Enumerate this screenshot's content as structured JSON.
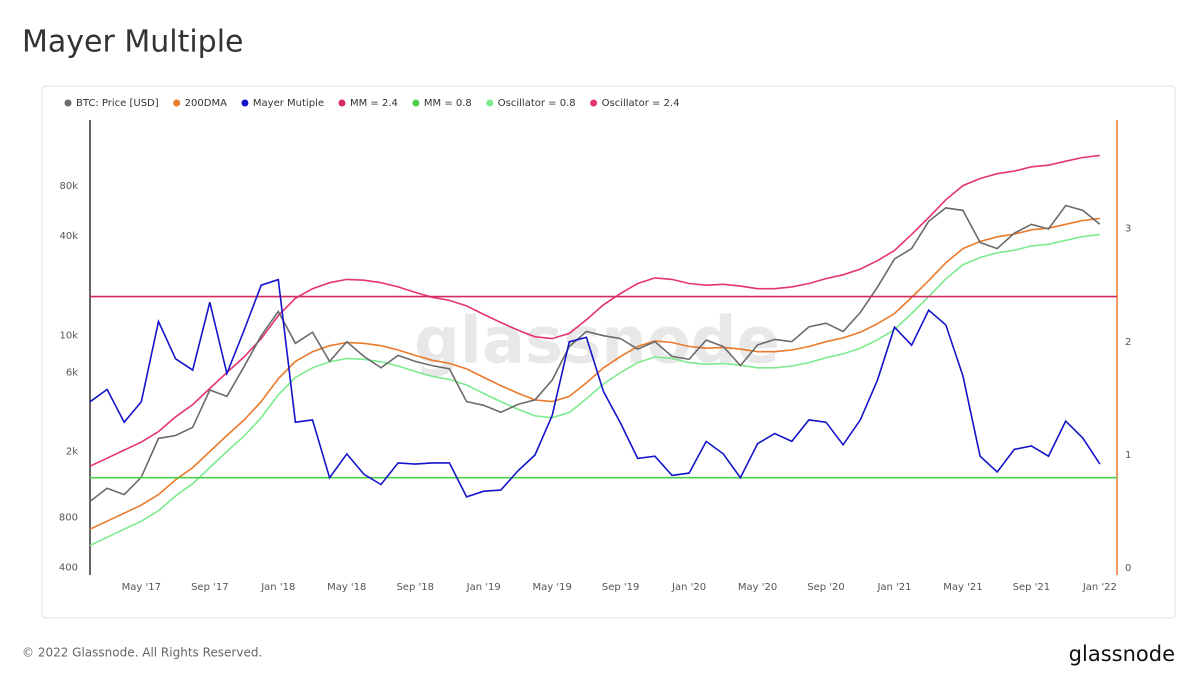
{
  "chart_data": {
    "type": "line",
    "title": "Mayer Multiple",
    "x": [
      "2017-02",
      "2017-03",
      "2017-04",
      "2017-05",
      "2017-06",
      "2017-07",
      "2017-08",
      "2017-09",
      "2017-10",
      "2017-11",
      "2017-12",
      "2018-01",
      "2018-02",
      "2018-03",
      "2018-04",
      "2018-05",
      "2018-06",
      "2018-07",
      "2018-08",
      "2018-09",
      "2018-10",
      "2018-11",
      "2018-12",
      "2019-01",
      "2019-02",
      "2019-03",
      "2019-04",
      "2019-05",
      "2019-06",
      "2019-07",
      "2019-08",
      "2019-09",
      "2019-10",
      "2019-11",
      "2019-12",
      "2020-01",
      "2020-02",
      "2020-03",
      "2020-04",
      "2020-05",
      "2020-06",
      "2020-07",
      "2020-08",
      "2020-09",
      "2020-10",
      "2020-11",
      "2020-12",
      "2021-01",
      "2021-02",
      "2021-03",
      "2021-04",
      "2021-05",
      "2021-06",
      "2021-07",
      "2021-08",
      "2021-09",
      "2021-10",
      "2021-11",
      "2021-12",
      "2022-01"
    ],
    "xlim": [
      "2017-02",
      "2022-02"
    ],
    "xticks": [
      {
        "value": "2017-05",
        "label": "May '17"
      },
      {
        "value": "2017-09",
        "label": "Sep '17"
      },
      {
        "value": "2018-01",
        "label": "Jan '18"
      },
      {
        "value": "2018-05",
        "label": "May '18"
      },
      {
        "value": "2018-09",
        "label": "Sep '18"
      },
      {
        "value": "2019-01",
        "label": "Jan '19"
      },
      {
        "value": "2019-05",
        "label": "May '19"
      },
      {
        "value": "2019-09",
        "label": "Sep '19"
      },
      {
        "value": "2020-01",
        "label": "Jan '20"
      },
      {
        "value": "2020-05",
        "label": "May '20"
      },
      {
        "value": "2020-09",
        "label": "Sep '20"
      },
      {
        "value": "2021-01",
        "label": "Jan '21"
      },
      {
        "value": "2021-05",
        "label": "May '21"
      },
      {
        "value": "2021-09",
        "label": "Sep '21"
      },
      {
        "value": "2022-01",
        "label": "Jan '22"
      }
    ],
    "ylim": [
      360,
      200000
    ],
    "yscale": "log",
    "yticks": [
      400,
      800,
      {
        "value": 2000,
        "label": "2k"
      },
      {
        "value": 6000,
        "label": "6k"
      },
      {
        "value": 10000,
        "label": "10k"
      },
      {
        "value": 40000,
        "label": "40k"
      },
      {
        "value": 80000,
        "label": "80k"
      }
    ],
    "y2lim": [
      -0.06,
      3.96
    ],
    "y2ticks": [
      0,
      1,
      2,
      3
    ],
    "grid": false,
    "series": [
      {
        "name": "BTC: Price [USD]",
        "color": "#6b6b6b",
        "values": [
          1000,
          1200,
          1100,
          1400,
          2400,
          2500,
          2800,
          4700,
          4300,
          6500,
          10000,
          14000,
          9000,
          10500,
          7000,
          9200,
          7500,
          6400,
          7600,
          7000,
          6600,
          6300,
          4000,
          3800,
          3450,
          3850,
          4100,
          5400,
          8600,
          10600,
          10000,
          9600,
          8300,
          9200,
          7500,
          7200,
          9400,
          8600,
          6600,
          8800,
          9500,
          9200,
          11300,
          11900,
          10600,
          13800,
          19600,
          29000,
          33500,
          49000,
          59000,
          57000,
          36500,
          33500,
          41500,
          47000,
          44000,
          61000,
          57000,
          47000
        ]
      },
      {
        "name": "200DMA",
        "color": "#ea7a2c",
        "values": [
          680,
          760,
          850,
          950,
          1100,
          1350,
          1600,
          2000,
          2500,
          3100,
          4000,
          5500,
          7000,
          8000,
          8700,
          9100,
          9000,
          8700,
          8200,
          7600,
          7100,
          6800,
          6300,
          5600,
          5000,
          4500,
          4100,
          4000,
          4300,
          5200,
          6400,
          7500,
          8600,
          9300,
          9100,
          8600,
          8400,
          8500,
          8300,
          8000,
          8000,
          8200,
          8600,
          9200,
          9700,
          10500,
          11800,
          13600,
          17000,
          21500,
          27500,
          33500,
          37000,
          39500,
          41000,
          43500,
          44500,
          47000,
          49500,
          51000
        ]
      },
      {
        "name": "Mayer Mutiple",
        "color": "#1414c8",
        "axis": "y2",
        "values": [
          1.47,
          1.58,
          1.29,
          1.47,
          2.18,
          1.85,
          1.75,
          2.35,
          1.72,
          2.1,
          2.5,
          2.55,
          1.29,
          1.31,
          0.8,
          1.01,
          0.83,
          0.74,
          0.93,
          0.92,
          0.93,
          0.93,
          0.63,
          0.68,
          0.69,
          0.86,
          1.0,
          1.35,
          2.0,
          2.04,
          1.56,
          1.28,
          0.97,
          0.99,
          0.82,
          0.84,
          1.12,
          1.01,
          0.8,
          1.1,
          1.19,
          1.12,
          1.31,
          1.29,
          1.09,
          1.31,
          1.66,
          2.13,
          1.97,
          2.28,
          2.15,
          1.7,
          0.99,
          0.85,
          1.05,
          1.08,
          0.99,
          1.3,
          1.15,
          0.92
        ]
      },
      {
        "name": "MM = 2.4",
        "color": "#d42a5f",
        "axis": "y2",
        "value": 2.4
      },
      {
        "name": "MM = 0.8",
        "color": "#4ccf4c",
        "axis": "y2",
        "value": 0.8
      },
      {
        "name": "Oscillator = 0.8",
        "color": "#7deb8c",
        "values": [
          544,
          608,
          680,
          760,
          880,
          1080,
          1280,
          1600,
          2000,
          2480,
          3200,
          4400,
          5600,
          6400,
          6960,
          7280,
          7200,
          6960,
          6560,
          6080,
          5680,
          5440,
          5040,
          4480,
          4000,
          3600,
          3280,
          3200,
          3440,
          4160,
          5120,
          6000,
          6880,
          7440,
          7280,
          6880,
          6720,
          6800,
          6640,
          6400,
          6400,
          6560,
          6880,
          7360,
          7760,
          8400,
          9440,
          10880,
          13600,
          17200,
          22000,
          26800,
          29600,
          31600,
          32800,
          34800,
          35600,
          37600,
          39600,
          40800
        ]
      },
      {
        "name": "Oscillator = 2.4",
        "color": "#e5356f",
        "values": [
          1632,
          1824,
          2040,
          2280,
          2640,
          3240,
          3840,
          4800,
          6000,
          7440,
          9600,
          13200,
          16800,
          19200,
          20880,
          21840,
          21600,
          20880,
          19680,
          18240,
          17040,
          16320,
          15120,
          13440,
          12000,
          10800,
          9840,
          9600,
          10320,
          12480,
          15360,
          18000,
          20640,
          22320,
          21840,
          20640,
          20160,
          20400,
          19920,
          19200,
          19200,
          19680,
          20640,
          22080,
          23280,
          25200,
          28320,
          32640,
          40800,
          51600,
          66000,
          80400,
          88800,
          94800,
          98400,
          104400,
          106800,
          112800,
          118800,
          122400
        ]
      }
    ],
    "watermark": "glassnode"
  },
  "footer": "© 2022 Glassnode. All Rights Reserved.",
  "brand": "glassnode"
}
